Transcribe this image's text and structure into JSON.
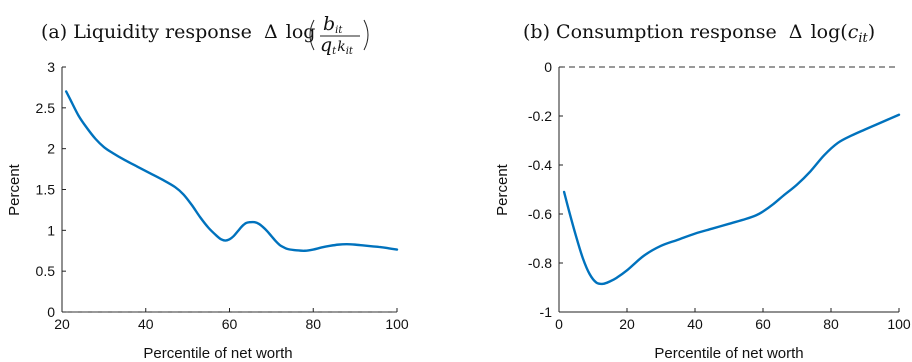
{
  "chart_data": [
    {
      "type": "line",
      "title_prefix": "(a) Liquidity response",
      "title_math": {
        "delta": "Δ",
        "log": "log",
        "numerator": "b",
        "numerator_sub": "it",
        "denominator_q": "q",
        "denominator_q_sub": "t",
        "denominator_k": "k",
        "denominator_k_sub": "it"
      },
      "xlabel": "Percentile of net worth",
      "ylabel": "Percent",
      "xlim": [
        20,
        100
      ],
      "ylim": [
        0,
        3
      ],
      "xticks": [
        20,
        40,
        60,
        80,
        100
      ],
      "yticks": [
        0,
        0.5,
        1,
        1.5,
        2,
        2.5,
        3
      ],
      "reference_line_y": 0,
      "series_color": "#0072BD",
      "x": [
        21,
        22,
        24,
        26,
        28,
        30,
        32,
        35,
        38,
        41,
        44,
        47,
        49,
        51,
        53,
        55,
        57,
        58,
        59,
        60,
        61,
        62,
        63,
        64,
        65,
        66,
        67,
        68,
        69,
        70,
        71,
        72,
        73,
        74,
        76,
        78,
        80,
        82,
        84,
        86,
        88,
        90,
        92,
        94,
        96,
        98,
        100
      ],
      "y": [
        2.7,
        2.6,
        2.4,
        2.25,
        2.12,
        2.02,
        1.95,
        1.86,
        1.78,
        1.7,
        1.62,
        1.53,
        1.44,
        1.31,
        1.16,
        1.03,
        0.93,
        0.89,
        0.875,
        0.89,
        0.93,
        0.99,
        1.05,
        1.09,
        1.1,
        1.1,
        1.08,
        1.04,
        0.99,
        0.93,
        0.87,
        0.82,
        0.79,
        0.77,
        0.755,
        0.75,
        0.765,
        0.79,
        0.81,
        0.825,
        0.83,
        0.825,
        0.815,
        0.805,
        0.795,
        0.78,
        0.765
      ]
    },
    {
      "type": "line",
      "title_prefix": "(b) Consumption response",
      "title_math": {
        "delta": "Δ",
        "log": "log",
        "variable": "c",
        "variable_sub": "it"
      },
      "xlabel": "Percentile of net worth",
      "ylabel": "Percent",
      "xlim": [
        0,
        100
      ],
      "ylim": [
        -1,
        0
      ],
      "xticks": [
        0,
        20,
        40,
        60,
        80,
        100
      ],
      "yticks": [
        -1,
        -0.8,
        -0.6,
        -0.4,
        -0.2,
        0
      ],
      "reference_line_y": 0,
      "series_color": "#0072BD",
      "x": [
        1.5,
        3,
        5,
        7,
        9,
        11,
        13,
        15,
        17,
        20,
        25,
        30,
        35,
        40,
        45,
        50,
        55,
        58,
        60,
        63,
        66,
        70,
        74,
        78,
        82,
        86,
        90,
        95,
        100
      ],
      "y": [
        -0.51,
        -0.59,
        -0.69,
        -0.78,
        -0.845,
        -0.88,
        -0.885,
        -0.875,
        -0.86,
        -0.83,
        -0.77,
        -0.73,
        -0.705,
        -0.68,
        -0.66,
        -0.64,
        -0.62,
        -0.605,
        -0.59,
        -0.56,
        -0.525,
        -0.48,
        -0.425,
        -0.36,
        -0.31,
        -0.28,
        -0.255,
        -0.225,
        -0.195
      ]
    }
  ]
}
